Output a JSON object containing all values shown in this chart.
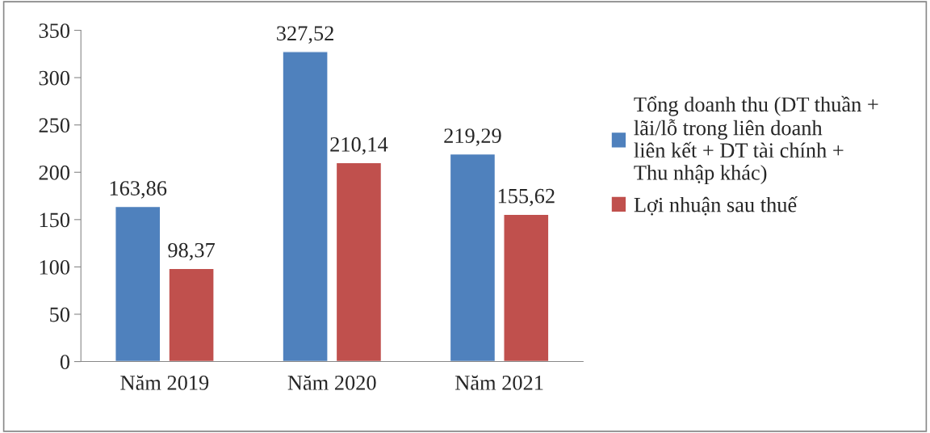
{
  "chart_data": {
    "type": "bar",
    "categories": [
      "Năm 2019",
      "Năm 2020",
      "Năm 2021"
    ],
    "series": [
      {
        "name": "Tổng doanh thu (DT thuần + lãi/lỗ trong liên doanh liên kết + DT tài chính + Thu nhập khác)",
        "color": "#4f81bd",
        "values": [
          163.86,
          327.52,
          219.29
        ],
        "value_labels": [
          "163,86",
          "327,52",
          "219,29"
        ]
      },
      {
        "name": "Lợi nhuận sau thuế",
        "color": "#c0504d",
        "values": [
          98.37,
          210.14,
          155.62
        ],
        "value_labels": [
          "98,37",
          "210,14",
          "155,62"
        ]
      }
    ],
    "ylim": [
      0,
      350
    ],
    "yticks": [
      0,
      50,
      100,
      150,
      200,
      250,
      300,
      350
    ],
    "grid": false,
    "legend": "right"
  }
}
